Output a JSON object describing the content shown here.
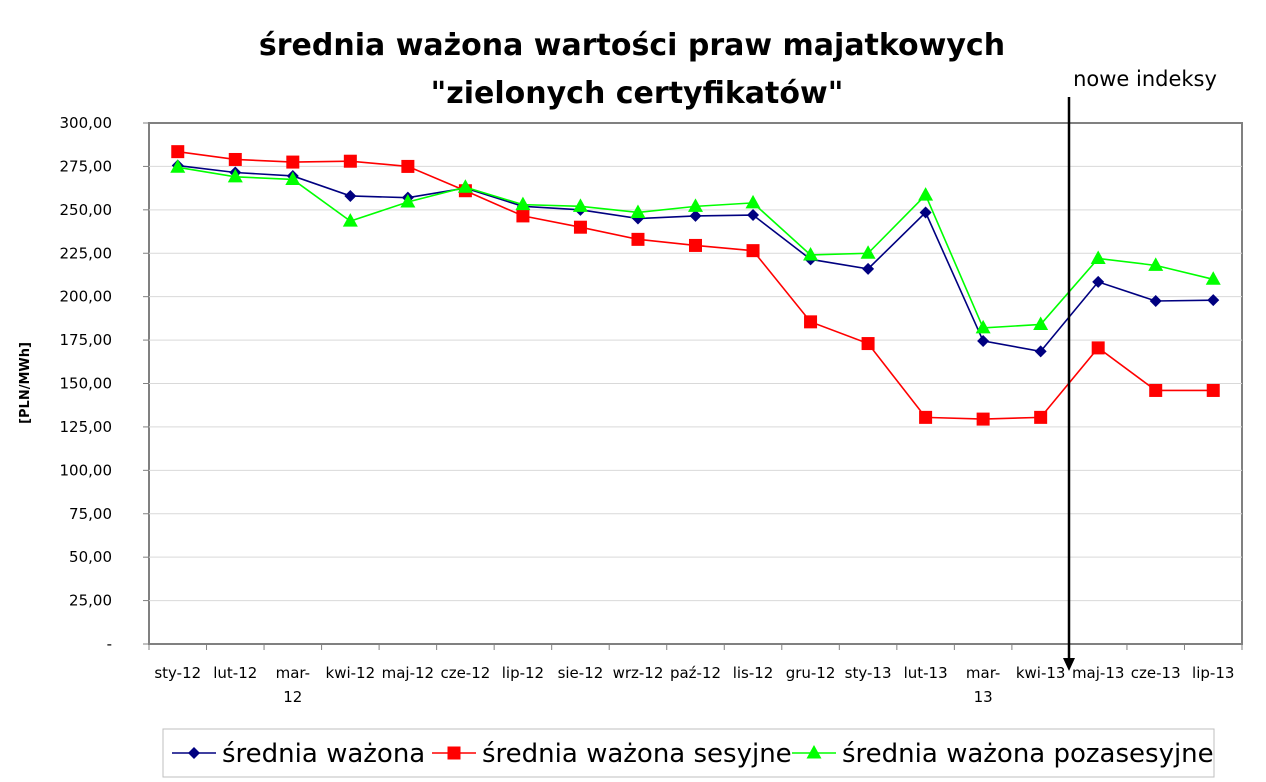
{
  "chart_data": {
    "type": "line",
    "title_lines": [
      "średnia ważona wartości praw majatkowych",
      "\"zielonych certyfikatów\""
    ],
    "ylabel": "[PLN/MWh]",
    "xlabel": "",
    "ylim": [
      0,
      300
    ],
    "yticks": [
      0,
      25,
      50,
      75,
      100,
      125,
      150,
      175,
      200,
      225,
      250,
      275,
      300
    ],
    "ytick_labels": [
      "-",
      "25,00",
      "50,00",
      "75,00",
      "100,00",
      "125,00",
      "150,00",
      "175,00",
      "200,00",
      "225,00",
      "250,00",
      "275,00",
      "300,00"
    ],
    "categories": [
      "sty-12",
      "lut-12",
      "mar-12",
      "kwi-12",
      "maj-12",
      "cze-12",
      "lip-12",
      "sie-12",
      "wrz-12",
      "paź-12",
      "lis-12",
      "gru-12",
      "sty-13",
      "lut-13",
      "mar-13",
      "kwi-13",
      "maj-13",
      "cze-13",
      "lip-13"
    ],
    "category_label_lines": [
      [
        "sty-12"
      ],
      [
        "lut-12"
      ],
      [
        "mar-",
        "12"
      ],
      [
        "kwi-12"
      ],
      [
        "maj-12"
      ],
      [
        "cze-12"
      ],
      [
        "lip-12"
      ],
      [
        "sie-12"
      ],
      [
        "wrz-12"
      ],
      [
        "paź-12"
      ],
      [
        "lis-12"
      ],
      [
        "gru-12"
      ],
      [
        "sty-13"
      ],
      [
        "lut-13"
      ],
      [
        "mar-",
        "13"
      ],
      [
        "kwi-13"
      ],
      [
        "maj-13"
      ],
      [
        "cze-13"
      ],
      [
        "lip-13"
      ]
    ],
    "grid": true,
    "legend_position": "bottom",
    "series": [
      {
        "name": "średnia ważona",
        "color": "#000080",
        "marker": "diamond",
        "values": [
          275.5,
          271.5,
          269.5,
          258.0,
          257.0,
          262.5,
          252.0,
          250.0,
          245.0,
          246.5,
          247.0,
          221.5,
          216.0,
          248.5,
          174.5,
          168.5,
          208.5,
          197.5,
          198.0
        ]
      },
      {
        "name": "średnia ważona sesyjne",
        "color": "#ff0000",
        "marker": "square",
        "values": [
          283.5,
          279.0,
          277.5,
          278.0,
          275.0,
          261.0,
          246.5,
          240.0,
          233.0,
          229.5,
          226.5,
          185.5,
          173.0,
          130.5,
          129.5,
          130.5,
          170.5,
          146.0,
          146.0
        ]
      },
      {
        "name": "średnia ważona pozasesyjne",
        "color": "#00ff00",
        "marker": "triangle",
        "values": [
          274.5,
          269.0,
          267.5,
          243.5,
          254.5,
          263.0,
          253.0,
          252.0,
          248.5,
          252.0,
          254.0,
          224.0,
          225.0,
          258.5,
          182.0,
          184.0,
          222.0,
          218.0,
          210.0
        ]
      }
    ],
    "annotations": [
      {
        "text": "nowe indeksy",
        "marker": "arrow-down",
        "between": [
          "kwi-13",
          "maj-13"
        ]
      }
    ]
  }
}
